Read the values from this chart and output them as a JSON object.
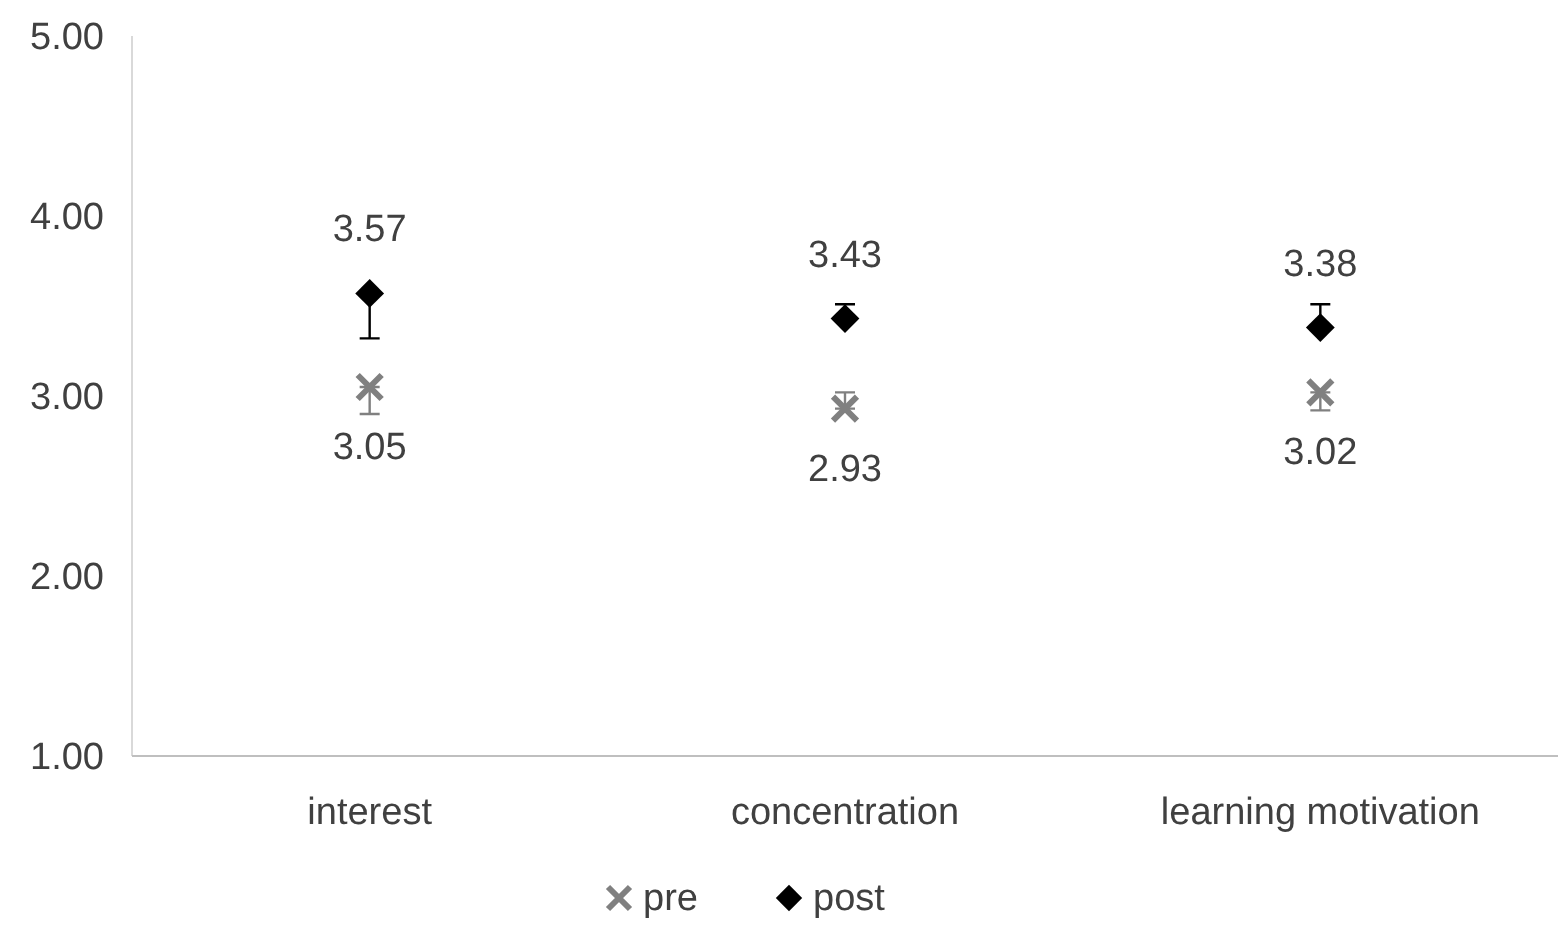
{
  "chart_data": {
    "type": "scatter",
    "categories": [
      "interest",
      "concentration",
      "learning motivation"
    ],
    "ylim": [
      1,
      5
    ],
    "yticks": [
      {
        "value": 1,
        "label": "1.00"
      },
      {
        "value": 2,
        "label": "2.00"
      },
      {
        "value": 3,
        "label": "3.00"
      },
      {
        "value": 4,
        "label": "4.00"
      },
      {
        "value": 5,
        "label": "5.00"
      }
    ],
    "series": [
      {
        "name": "pre",
        "color": "#808080",
        "marker": "cross",
        "values": [
          3.05,
          2.93,
          3.02
        ],
        "errors": [
          [
            2.9,
            3.05
          ],
          [
            2.93,
            3.02
          ],
          [
            2.92,
            3.02
          ]
        ]
      },
      {
        "name": "post",
        "color": "#000000",
        "marker": "diamond",
        "values": [
          3.57,
          3.43,
          3.38
        ],
        "errors": [
          [
            3.32,
            3.57
          ],
          [
            3.43,
            3.51
          ],
          [
            3.38,
            3.51
          ]
        ]
      }
    ],
    "data_labels": true,
    "legend": "bottom",
    "grid": false
  }
}
